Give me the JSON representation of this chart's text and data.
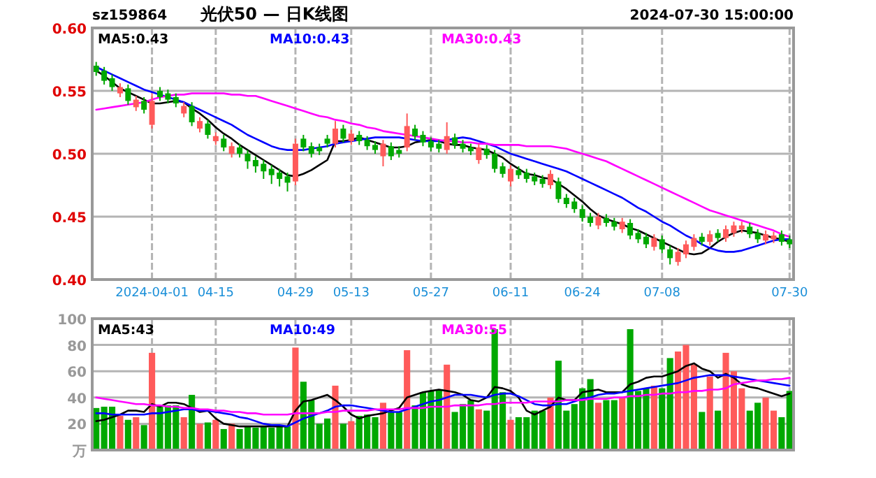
{
  "chart_data": [
    {
      "type": "candlestick",
      "title": "光伏50 — 日K线图",
      "annotations": [
        "sz159864",
        "2024-07-30 15:00:00"
      ],
      "categories": [
        null,
        null,
        null,
        null,
        null,
        null,
        null,
        "2024-04-01",
        null,
        null,
        null,
        null,
        null,
        null,
        null,
        "04-15",
        null,
        null,
        null,
        null,
        null,
        null,
        null,
        null,
        null,
        "04-29",
        null,
        null,
        null,
        null,
        null,
        null,
        "05-13",
        null,
        null,
        null,
        null,
        null,
        null,
        null,
        null,
        null,
        "05-27",
        null,
        null,
        null,
        null,
        null,
        null,
        null,
        null,
        null,
        "06-11",
        null,
        null,
        null,
        null,
        null,
        null,
        null,
        null,
        "06-24",
        null,
        null,
        null,
        null,
        null,
        null,
        null,
        null,
        null,
        "07-08",
        null,
        null,
        null,
        null,
        null,
        null,
        null,
        null,
        null,
        null,
        null,
        null,
        null,
        null,
        null,
        "07-30"
      ],
      "ohlc": [
        [
          0.57,
          0.573,
          0.562,
          0.565
        ],
        [
          0.566,
          0.569,
          0.555,
          0.558
        ],
        [
          0.56,
          0.563,
          0.55,
          0.553
        ],
        [
          0.548,
          0.556,
          0.545,
          0.553
        ],
        [
          0.552,
          0.555,
          0.539,
          0.542
        ],
        [
          0.537,
          0.546,
          0.534,
          0.543
        ],
        [
          0.542,
          0.545,
          0.532,
          0.535
        ],
        [
          0.523,
          0.548,
          0.52,
          0.542
        ],
        [
          0.55,
          0.553,
          0.542,
          0.545
        ],
        [
          0.548,
          0.551,
          0.54,
          0.543
        ],
        [
          0.545,
          0.548,
          0.537,
          0.54
        ],
        [
          0.532,
          0.541,
          0.529,
          0.538
        ],
        [
          0.538,
          0.541,
          0.522,
          0.525
        ],
        [
          0.52,
          0.529,
          0.517,
          0.526
        ],
        [
          0.524,
          0.527,
          0.512,
          0.515
        ],
        [
          0.51,
          0.517,
          0.507,
          0.514
        ],
        [
          0.512,
          0.515,
          0.502,
          0.505
        ],
        [
          0.5,
          0.509,
          0.497,
          0.506
        ],
        [
          0.505,
          0.508,
          0.497,
          0.5
        ],
        [
          0.5,
          0.503,
          0.488,
          0.494
        ],
        [
          0.495,
          0.498,
          0.485,
          0.49
        ],
        [
          0.492,
          0.495,
          0.48,
          0.486
        ],
        [
          0.488,
          0.491,
          0.476,
          0.483
        ],
        [
          0.485,
          0.488,
          0.474,
          0.48
        ],
        [
          0.482,
          0.485,
          0.47,
          0.477
        ],
        [
          0.478,
          0.512,
          0.475,
          0.508
        ],
        [
          0.512,
          0.515,
          0.502,
          0.505
        ],
        [
          0.506,
          0.509,
          0.497,
          0.5
        ],
        [
          0.505,
          0.508,
          0.499,
          0.502
        ],
        [
          0.512,
          0.515,
          0.505,
          0.508
        ],
        [
          0.508,
          0.526,
          0.505,
          0.52
        ],
        [
          0.52,
          0.523,
          0.509,
          0.512
        ],
        [
          0.51,
          0.519,
          0.507,
          0.516
        ],
        [
          0.515,
          0.518,
          0.507,
          0.51
        ],
        [
          0.511,
          0.514,
          0.503,
          0.506
        ],
        [
          0.507,
          0.51,
          0.5,
          0.503
        ],
        [
          0.498,
          0.511,
          0.49,
          0.508
        ],
        [
          0.506,
          0.509,
          0.495,
          0.498
        ],
        [
          0.503,
          0.506,
          0.497,
          0.5
        ],
        [
          0.505,
          0.532,
          0.502,
          0.522
        ],
        [
          0.52,
          0.523,
          0.511,
          0.514
        ],
        [
          0.515,
          0.518,
          0.506,
          0.509
        ],
        [
          0.51,
          0.513,
          0.502,
          0.505
        ],
        [
          0.508,
          0.511,
          0.501,
          0.504
        ],
        [
          0.503,
          0.525,
          0.5,
          0.514
        ],
        [
          0.513,
          0.516,
          0.504,
          0.507
        ],
        [
          0.508,
          0.511,
          0.501,
          0.504
        ],
        [
          0.505,
          0.508,
          0.499,
          0.502
        ],
        [
          0.495,
          0.508,
          0.492,
          0.505
        ],
        [
          0.504,
          0.507,
          0.496,
          0.499
        ],
        [
          0.5,
          0.503,
          0.485,
          0.488
        ],
        [
          0.49,
          0.493,
          0.481,
          0.484
        ],
        [
          0.478,
          0.491,
          0.474,
          0.488
        ],
        [
          0.487,
          0.49,
          0.48,
          0.483
        ],
        [
          0.485,
          0.488,
          0.477,
          0.48
        ],
        [
          0.482,
          0.485,
          0.475,
          0.478
        ],
        [
          0.48,
          0.483,
          0.473,
          0.476
        ],
        [
          0.475,
          0.487,
          0.472,
          0.484
        ],
        [
          0.478,
          0.481,
          0.461,
          0.464
        ],
        [
          0.465,
          0.468,
          0.457,
          0.46
        ],
        [
          0.462,
          0.465,
          0.453,
          0.456
        ],
        [
          0.456,
          0.459,
          0.446,
          0.449
        ],
        [
          0.45,
          0.453,
          0.442,
          0.445
        ],
        [
          0.443,
          0.453,
          0.44,
          0.45
        ],
        [
          0.449,
          0.452,
          0.442,
          0.445
        ],
        [
          0.446,
          0.449,
          0.439,
          0.442
        ],
        [
          0.44,
          0.449,
          0.437,
          0.446
        ],
        [
          0.445,
          0.448,
          0.432,
          0.435
        ],
        [
          0.437,
          0.44,
          0.429,
          0.432
        ],
        [
          0.434,
          0.437,
          0.425,
          0.428
        ],
        [
          0.426,
          0.436,
          0.423,
          0.433
        ],
        [
          0.432,
          0.435,
          0.421,
          0.424
        ],
        [
          0.424,
          0.427,
          0.412,
          0.417
        ],
        [
          0.414,
          0.425,
          0.411,
          0.422
        ],
        [
          0.42,
          0.431,
          0.417,
          0.428
        ],
        [
          0.426,
          0.436,
          0.423,
          0.433
        ],
        [
          0.434,
          0.437,
          0.427,
          0.43
        ],
        [
          0.43,
          0.439,
          0.427,
          0.436
        ],
        [
          0.437,
          0.44,
          0.43,
          0.433
        ],
        [
          0.433,
          0.443,
          0.43,
          0.44
        ],
        [
          0.437,
          0.446,
          0.434,
          0.443
        ],
        [
          0.44,
          0.446,
          0.437,
          0.443
        ],
        [
          0.442,
          0.445,
          0.433,
          0.436
        ],
        [
          0.437,
          0.44,
          0.429,
          0.432
        ],
        [
          0.431,
          0.439,
          0.428,
          0.436
        ],
        [
          0.432,
          0.438,
          0.429,
          0.435
        ],
        [
          0.436,
          0.439,
          0.427,
          0.43
        ],
        [
          0.432,
          0.435,
          0.425,
          0.428
        ]
      ],
      "colors": [
        "#00a800",
        "#00a800",
        "#00a800",
        "#ff5a5a",
        "#00a800",
        "#ff5a5a",
        "#00a800",
        "#ff5a5a",
        "#00a800",
        "#00a800",
        "#00a800",
        "#ff5a5a",
        "#00a800",
        "#ff5a5a",
        "#00a800",
        "#ff5a5a",
        "#00a800",
        "#ff5a5a",
        "#00a800",
        "#00a800",
        "#00a800",
        "#00a800",
        "#00a800",
        "#00a800",
        "#00a800",
        "#ff5a5a",
        "#00a800",
        "#00a800",
        "#00a800",
        "#00a800",
        "#ff5a5a",
        "#00a800",
        "#ff5a5a",
        "#00a800",
        "#00a800",
        "#00a800",
        "#ff5a5a",
        "#00a800",
        "#00a800",
        "#ff5a5a",
        "#00a800",
        "#00a800",
        "#00a800",
        "#00a800",
        "#ff5a5a",
        "#00a800",
        "#00a800",
        "#00a800",
        "#ff5a5a",
        "#00a800",
        "#00a800",
        "#00a800",
        "#ff5a5a",
        "#00a800",
        "#00a800",
        "#00a800",
        "#00a800",
        "#ff5a5a",
        "#00a800",
        "#00a800",
        "#00a800",
        "#00a800",
        "#00a800",
        "#ff5a5a",
        "#00a800",
        "#00a800",
        "#ff5a5a",
        "#00a800",
        "#00a800",
        "#00a800",
        "#ff5a5a",
        "#00a800",
        "#00a800",
        "#ff5a5a",
        "#ff5a5a",
        "#ff5a5a",
        "#00a800",
        "#ff5a5a",
        "#00a800",
        "#ff5a5a",
        "#ff5a5a",
        "#ff5a5a",
        "#00a800",
        "#00a800",
        "#ff5a5a",
        "#ff5a5a",
        "#00a800",
        "#00a800"
      ],
      "series": [
        {
          "name": "MA5:0.43",
          "type": "line",
          "color": "#000000",
          "values": [
            0.566,
            0.562,
            0.557,
            0.552,
            0.549,
            0.546,
            0.543,
            0.54,
            0.54,
            0.541,
            0.542,
            0.541,
            0.536,
            0.532,
            0.527,
            0.521,
            0.516,
            0.512,
            0.507,
            0.503,
            0.499,
            0.495,
            0.491,
            0.487,
            0.483,
            0.482,
            0.484,
            0.487,
            0.491,
            0.495,
            0.51,
            0.51,
            0.511,
            0.513,
            0.511,
            0.509,
            0.507,
            0.505,
            0.505,
            0.506,
            0.509,
            0.51,
            0.511,
            0.51,
            0.508,
            0.507,
            0.507,
            0.505,
            0.504,
            0.503,
            0.5,
            0.497,
            0.492,
            0.488,
            0.484,
            0.483,
            0.481,
            0.48,
            0.476,
            0.472,
            0.467,
            0.462,
            0.456,
            0.451,
            0.448,
            0.446,
            0.444,
            0.441,
            0.439,
            0.436,
            0.433,
            0.43,
            0.427,
            0.424,
            0.421,
            0.42,
            0.421,
            0.425,
            0.43,
            0.434,
            0.437,
            0.439,
            0.438,
            0.437,
            0.435,
            0.433,
            0.432,
            0.43
          ]
        },
        {
          "name": "MA10:0.43",
          "type": "line",
          "color": "#0000ff",
          "values": [
            0.569,
            0.566,
            0.563,
            0.56,
            0.557,
            0.554,
            0.551,
            0.549,
            0.547,
            0.545,
            0.543,
            0.541,
            0.538,
            0.535,
            0.532,
            0.529,
            0.526,
            0.523,
            0.519,
            0.515,
            0.512,
            0.509,
            0.506,
            0.504,
            0.503,
            0.503,
            0.503,
            0.504,
            0.505,
            0.506,
            0.508,
            0.509,
            0.51,
            0.511,
            0.512,
            0.513,
            0.513,
            0.513,
            0.513,
            0.512,
            0.511,
            0.51,
            0.51,
            0.51,
            0.511,
            0.512,
            0.513,
            0.512,
            0.51,
            0.508,
            0.506,
            0.503,
            0.5,
            0.498,
            0.496,
            0.494,
            0.492,
            0.49,
            0.488,
            0.486,
            0.483,
            0.48,
            0.477,
            0.474,
            0.471,
            0.468,
            0.465,
            0.461,
            0.457,
            0.454,
            0.45,
            0.446,
            0.443,
            0.439,
            0.435,
            0.432,
            0.428,
            0.425,
            0.423,
            0.422,
            0.422,
            0.423,
            0.425,
            0.427,
            0.429,
            0.431,
            0.432,
            0.432
          ]
        },
        {
          "name": "MA30:0.43",
          "type": "line",
          "color": "#ff00ff",
          "values": [
            0.535,
            0.536,
            0.537,
            0.538,
            0.539,
            0.54,
            0.541,
            0.543,
            0.545,
            0.546,
            0.547,
            0.547,
            0.548,
            0.548,
            0.548,
            0.548,
            0.548,
            0.547,
            0.547,
            0.546,
            0.546,
            0.544,
            0.542,
            0.54,
            0.538,
            0.536,
            0.534,
            0.532,
            0.53,
            0.529,
            0.527,
            0.526,
            0.524,
            0.523,
            0.521,
            0.52,
            0.518,
            0.517,
            0.516,
            0.515,
            0.514,
            0.513,
            0.512,
            0.511,
            0.51,
            0.51,
            0.509,
            0.509,
            0.508,
            0.508,
            0.507,
            0.507,
            0.507,
            0.507,
            0.506,
            0.506,
            0.506,
            0.506,
            0.505,
            0.504,
            0.502,
            0.5,
            0.498,
            0.496,
            0.494,
            0.491,
            0.488,
            0.485,
            0.482,
            0.479,
            0.476,
            0.473,
            0.47,
            0.467,
            0.464,
            0.461,
            0.458,
            0.455,
            0.453,
            0.451,
            0.449,
            0.447,
            0.445,
            0.443,
            0.441,
            0.439,
            0.436,
            0.434
          ]
        }
      ],
      "ylim": [
        0.4,
        0.6
      ],
      "yticks": [
        {
          "value": 0.4,
          "label": "0.40"
        },
        {
          "value": 0.45,
          "label": "0.45"
        },
        {
          "value": 0.5,
          "label": "0.50"
        },
        {
          "value": 0.55,
          "label": "0.55"
        },
        {
          "value": 0.6,
          "label": "0.60"
        }
      ],
      "grid": true,
      "legend": "top"
    },
    {
      "type": "bar",
      "categories": [
        null,
        null,
        null,
        null,
        null,
        null,
        null,
        null,
        null,
        null,
        null,
        null,
        null,
        null,
        null,
        null,
        null,
        null,
        null,
        null,
        null,
        null,
        null,
        null,
        null,
        null,
        null,
        null,
        null,
        null,
        null,
        null,
        null,
        null,
        null,
        null,
        null,
        null,
        null,
        null,
        null,
        null,
        null,
        null,
        null,
        null,
        null,
        null,
        null,
        null,
        null,
        null,
        null,
        null,
        null,
        null,
        null,
        null,
        null,
        null,
        null,
        null,
        null,
        null,
        null,
        null,
        null,
        null,
        null,
        null,
        null,
        null,
        null,
        null,
        null,
        null,
        null,
        null,
        null,
        null,
        null,
        null,
        null,
        null,
        null,
        null,
        null,
        null
      ],
      "values": [
        32,
        33,
        33,
        26,
        23,
        25,
        19,
        74,
        34,
        34,
        34,
        25,
        42,
        20,
        21,
        23,
        16,
        20,
        16,
        18,
        17,
        18,
        17,
        19,
        18,
        78,
        52,
        38,
        20,
        24,
        49,
        20,
        22,
        26,
        27,
        25,
        36,
        29,
        29,
        76,
        34,
        44,
        45,
        46,
        65,
        29,
        35,
        38,
        31,
        30,
        92,
        44,
        23,
        25,
        25,
        30,
        30,
        40,
        68,
        30,
        35,
        47,
        54,
        36,
        38,
        38,
        40,
        92,
        45,
        47,
        49,
        47,
        70,
        75,
        80,
        65,
        29,
        56,
        30,
        74,
        60,
        47,
        30,
        36,
        40,
        30,
        25,
        45
      ],
      "colors": [
        "#00a800",
        "#00a800",
        "#00a800",
        "#ff5a5a",
        "#00a800",
        "#ff5a5a",
        "#00a800",
        "#ff5a5a",
        "#00a800",
        "#00a800",
        "#00a800",
        "#ff5a5a",
        "#00a800",
        "#ff5a5a",
        "#00a800",
        "#ff5a5a",
        "#00a800",
        "#ff5a5a",
        "#00a800",
        "#00a800",
        "#00a800",
        "#00a800",
        "#00a800",
        "#00a800",
        "#00a800",
        "#ff5a5a",
        "#00a800",
        "#00a800",
        "#00a800",
        "#00a800",
        "#ff5a5a",
        "#00a800",
        "#ff5a5a",
        "#00a800",
        "#00a800",
        "#00a800",
        "#ff5a5a",
        "#00a800",
        "#00a800",
        "#ff5a5a",
        "#00a800",
        "#00a800",
        "#00a800",
        "#00a800",
        "#ff5a5a",
        "#00a800",
        "#00a800",
        "#00a800",
        "#ff5a5a",
        "#00a800",
        "#00a800",
        "#00a800",
        "#ff5a5a",
        "#00a800",
        "#00a800",
        "#00a800",
        "#00a800",
        "#ff5a5a",
        "#00a800",
        "#00a800",
        "#00a800",
        "#00a800",
        "#00a800",
        "#ff5a5a",
        "#00a800",
        "#00a800",
        "#ff5a5a",
        "#00a800",
        "#00a800",
        "#00a800",
        "#ff5a5a",
        "#00a800",
        "#00a800",
        "#ff5a5a",
        "#ff5a5a",
        "#ff5a5a",
        "#00a800",
        "#ff5a5a",
        "#00a800",
        "#ff5a5a",
        "#ff5a5a",
        "#ff5a5a",
        "#00a800",
        "#00a800",
        "#ff5a5a",
        "#ff5a5a",
        "#00a800",
        "#00a800"
      ],
      "series": [
        {
          "name": "MA5:43",
          "type": "line",
          "color": "#000000",
          "values": [
            22,
            23,
            25,
            27,
            30,
            30,
            29,
            35,
            33,
            36,
            36,
            35,
            32,
            29,
            30,
            24,
            20,
            19,
            18,
            18,
            18,
            18,
            18,
            18,
            18,
            30,
            37,
            38,
            40,
            42,
            38,
            33,
            27,
            24,
            26,
            27,
            28,
            30,
            32,
            40,
            42,
            44,
            45,
            46,
            45,
            44,
            42,
            38,
            37,
            40,
            48,
            47,
            45,
            40,
            30,
            27,
            30,
            33,
            40,
            38,
            38,
            44,
            45,
            46,
            44,
            44,
            44,
            50,
            52,
            55,
            56,
            56,
            58,
            60,
            64,
            66,
            62,
            60,
            55,
            58,
            55,
            50,
            48,
            47,
            45,
            43,
            41,
            43
          ]
        },
        {
          "name": "MA10:49",
          "type": "line",
          "color": "#0000ff",
          "values": [
            28,
            28,
            27,
            27,
            27,
            27,
            27,
            28,
            28,
            29,
            30,
            31,
            31,
            30,
            30,
            29,
            28,
            27,
            25,
            24,
            22,
            20,
            19,
            19,
            18,
            21,
            24,
            26,
            28,
            30,
            33,
            34,
            34,
            33,
            32,
            31,
            30,
            29,
            29,
            31,
            33,
            35,
            37,
            38,
            40,
            42,
            42,
            42,
            41,
            40,
            42,
            43,
            43,
            41,
            38,
            35,
            34,
            34,
            35,
            35,
            37,
            39,
            40,
            42,
            43,
            43,
            44,
            45,
            46,
            47,
            48,
            49,
            50,
            51,
            53,
            55,
            56,
            57,
            57,
            57,
            56,
            55,
            54,
            53,
            52,
            51,
            50,
            49
          ]
        },
        {
          "name": "MA30:55",
          "type": "line",
          "color": "#ff00ff",
          "values": [
            40,
            39,
            38,
            37,
            36,
            35,
            35,
            34,
            34,
            33,
            33,
            32,
            32,
            31,
            31,
            30,
            30,
            29,
            29,
            28,
            28,
            27,
            27,
            27,
            27,
            28,
            28,
            28,
            28,
            29,
            29,
            30,
            30,
            30,
            30,
            31,
            31,
            31,
            31,
            32,
            32,
            32,
            33,
            33,
            33,
            34,
            34,
            34,
            34,
            35,
            35,
            36,
            36,
            36,
            36,
            37,
            37,
            37,
            37,
            38,
            38,
            38,
            39,
            39,
            39,
            40,
            40,
            41,
            41,
            42,
            42,
            43,
            43,
            44,
            44,
            45,
            45,
            46,
            46,
            47,
            50,
            51,
            52,
            53,
            53,
            54,
            54,
            55
          ]
        }
      ],
      "ylim": [
        0,
        100
      ],
      "yticks": [
        {
          "value": 0,
          "label": "万"
        },
        20,
        40,
        60,
        80,
        100
      ],
      "tick_labels": "y",
      "grid": true,
      "legend": "top"
    }
  ]
}
